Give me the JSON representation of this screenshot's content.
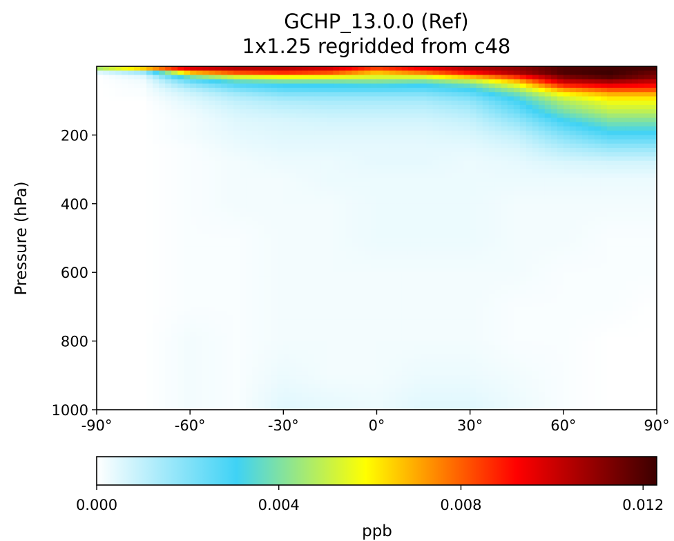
{
  "chart_data": {
    "type": "heatmap",
    "title": "GCHP_13.0.0 (Ref)",
    "subtitle": "1x1.25 regridded from c48",
    "xlabel": "",
    "ylabel": "Pressure (hPa)",
    "xlim": [
      -90,
      90
    ],
    "ylim": [
      1000,
      0
    ],
    "x_ticks": [
      -90,
      -60,
      -30,
      0,
      30,
      60,
      90
    ],
    "x_tick_labels": [
      "-90°",
      "-60°",
      "-30°",
      "0°",
      "30°",
      "60°",
      "90°"
    ],
    "y_ticks": [
      200,
      400,
      600,
      800,
      1000
    ],
    "y_tick_labels": [
      "200",
      "400",
      "600",
      "800",
      "1000"
    ],
    "colorbar": {
      "label": "ppb",
      "min": 0.0,
      "max": 0.0123,
      "ticks": [
        0.0,
        0.004,
        0.008,
        0.012
      ],
      "tick_labels": [
        "0.000",
        "0.004",
        "0.008",
        "0.012"
      ],
      "colormap": [
        "#ffffff",
        "#3fd2f5",
        "#ffff00",
        "#ff0000",
        "#3c0000"
      ]
    },
    "latitudes": [
      -90,
      -75,
      -60,
      -45,
      -30,
      -15,
      0,
      15,
      30,
      45,
      60,
      75,
      90
    ],
    "pressure_levels": [
      5,
      20,
      35,
      50,
      65,
      80,
      100,
      130,
      160,
      200,
      240,
      280,
      330,
      400,
      500,
      600,
      700,
      800,
      900,
      1000
    ],
    "values": [
      [
        0.005,
        0.007,
        0.01,
        0.0105,
        0.0105,
        0.01,
        0.0085,
        0.0095,
        0.0105,
        0.011,
        0.012,
        0.0122,
        0.0122
      ],
      [
        0.0,
        0.001,
        0.0065,
        0.008,
        0.0085,
        0.008,
        0.0065,
        0.0075,
        0.009,
        0.0105,
        0.012,
        0.0123,
        0.0115
      ],
      [
        0.0,
        0.0003,
        0.003,
        0.0045,
        0.005,
        0.005,
        0.005,
        0.0048,
        0.006,
        0.008,
        0.011,
        0.0118,
        0.011
      ],
      [
        0.0,
        0.0002,
        0.002,
        0.003,
        0.0033,
        0.0033,
        0.0035,
        0.0033,
        0.004,
        0.006,
        0.0095,
        0.01,
        0.0095
      ],
      [
        0.0,
        0.0001,
        0.0012,
        0.0022,
        0.0027,
        0.0028,
        0.0028,
        0.0027,
        0.0032,
        0.0048,
        0.0075,
        0.0085,
        0.0085
      ],
      [
        0.0,
        0.0001,
        0.0008,
        0.0015,
        0.002,
        0.002,
        0.002,
        0.002,
        0.0025,
        0.0038,
        0.006,
        0.007,
        0.007
      ],
      [
        0.0,
        0.0,
        0.0005,
        0.001,
        0.0013,
        0.0014,
        0.0014,
        0.0014,
        0.0018,
        0.003,
        0.0048,
        0.0058,
        0.0058
      ],
      [
        0.0,
        0.0,
        0.0003,
        0.0007,
        0.0009,
        0.001,
        0.001,
        0.001,
        0.0013,
        0.0024,
        0.004,
        0.005,
        0.005
      ],
      [
        0.0,
        0.0,
        0.0002,
        0.0005,
        0.0006,
        0.0007,
        0.0007,
        0.0007,
        0.0009,
        0.0017,
        0.003,
        0.004,
        0.004
      ],
      [
        0.0,
        0.0,
        0.0002,
        0.0004,
        0.0005,
        0.0005,
        0.0005,
        0.0005,
        0.0006,
        0.001,
        0.002,
        0.0028,
        0.0028
      ],
      [
        0.0,
        0.0,
        0.0001,
        0.0003,
        0.0004,
        0.0004,
        0.0004,
        0.0004,
        0.0004,
        0.0006,
        0.0012,
        0.0016,
        0.0016
      ],
      [
        0.0,
        0.0,
        0.0001,
        0.0002,
        0.0003,
        0.0003,
        0.0004,
        0.0004,
        0.0003,
        0.0004,
        0.0006,
        0.0007,
        0.0007
      ],
      [
        0.0,
        0.0,
        0.0001,
        0.0002,
        0.0002,
        0.0003,
        0.0003,
        0.0003,
        0.0003,
        0.0003,
        0.0003,
        0.0003,
        0.0003
      ],
      [
        0.0,
        0.0,
        0.0001,
        0.0002,
        0.0002,
        0.0002,
        0.0003,
        0.0003,
        0.0003,
        0.0002,
        0.0002,
        0.0002,
        0.0002
      ],
      [
        0.0,
        0.0,
        0.0001,
        0.0001,
        0.0002,
        0.0002,
        0.0003,
        0.0003,
        0.0003,
        0.0002,
        0.0002,
        0.0001,
        0.0001
      ],
      [
        0.0,
        0.0,
        0.0001,
        0.0001,
        0.0002,
        0.0002,
        0.0002,
        0.0002,
        0.0002,
        0.0002,
        0.0001,
        0.0001,
        0.0001
      ],
      [
        0.0,
        0.0,
        0.0001,
        0.0001,
        0.0002,
        0.0002,
        0.0002,
        0.0002,
        0.0002,
        0.0001,
        0.0001,
        0.0001,
        0.0
      ],
      [
        0.0,
        0.0,
        0.0002,
        0.0001,
        0.0002,
        0.0002,
        0.0002,
        0.0002,
        0.0002,
        0.0001,
        0.0001,
        0.0,
        0.0
      ],
      [
        0.0,
        0.0,
        0.0002,
        0.0001,
        0.0003,
        0.0002,
        0.0002,
        0.0003,
        0.0003,
        0.0002,
        0.0001,
        0.0,
        0.0
      ],
      [
        0.0,
        0.0,
        0.0002,
        0.0001,
        0.0005,
        0.0004,
        0.0003,
        0.0005,
        0.0005,
        0.0003,
        0.0001,
        0.0,
        0.0
      ]
    ]
  }
}
